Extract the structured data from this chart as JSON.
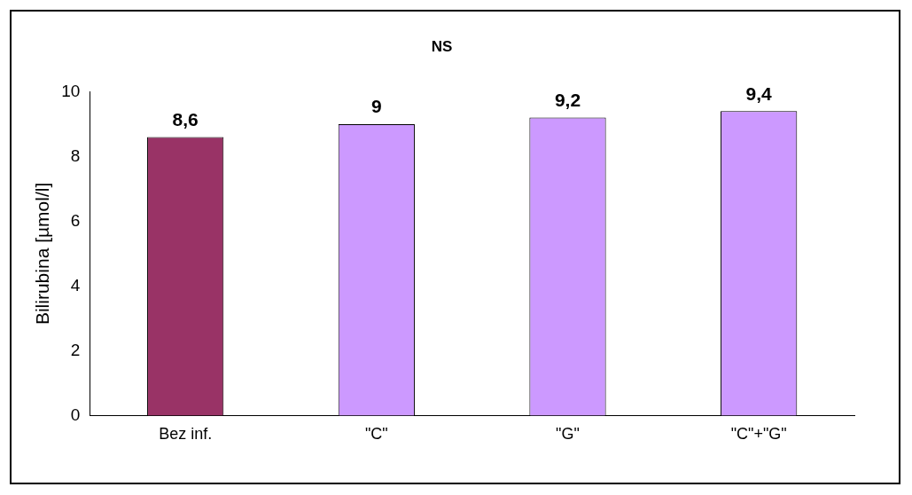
{
  "chart_data": {
    "type": "bar",
    "title": "NS",
    "ylabel": "Bilirubina [µmol/l]",
    "categories": [
      "Bez inf.",
      "\"C\"",
      "\"G\"",
      "\"C\"+\"G\""
    ],
    "values": [
      8.6,
      9,
      9.2,
      9.4
    ],
    "colors": [
      "#993366",
      "#cc99ff",
      "#cc99ff",
      "#cc99ff"
    ],
    "value_labels": [
      "8,6",
      "9",
      "9,2",
      "9,4"
    ],
    "ylim": [
      0,
      10
    ],
    "yticks": [
      0,
      2,
      4,
      6,
      8,
      10
    ],
    "grid": false,
    "legend": false
  }
}
